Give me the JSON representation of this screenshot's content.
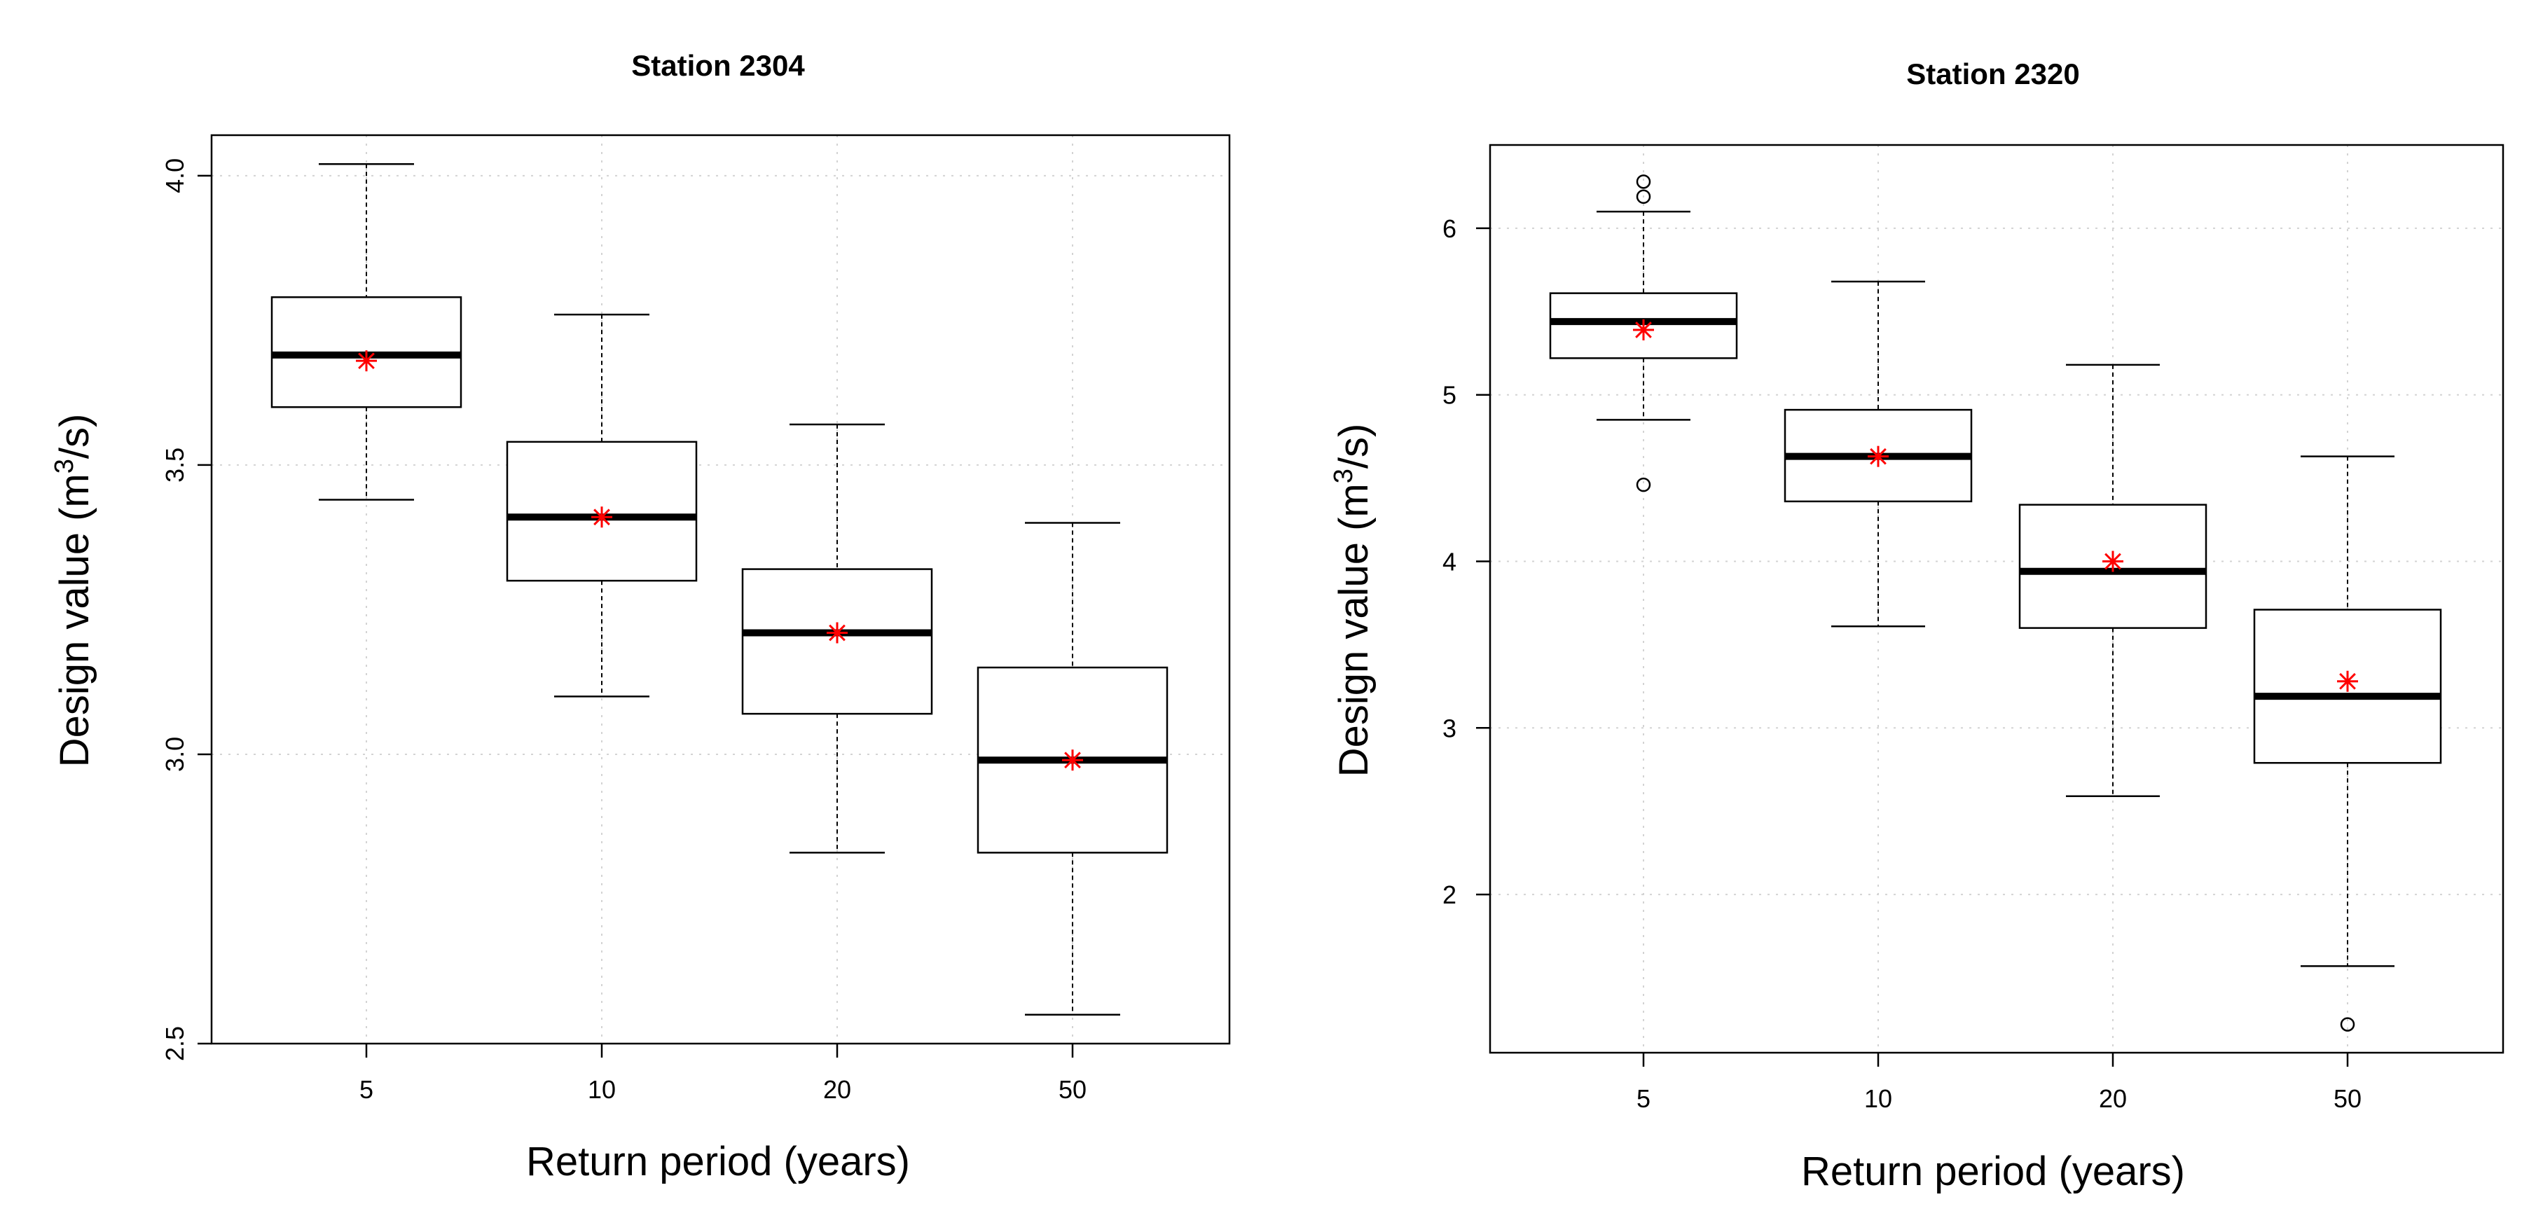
{
  "chart_data": [
    {
      "type": "box",
      "title": "Station 2304",
      "xlabel": "Return period (years)",
      "ylabel_main": "Design value (m",
      "ylabel_sup": "3",
      "ylabel_tail": "/s)",
      "categories": [
        "5",
        "10",
        "20",
        "50"
      ],
      "ylim": [
        2.5,
        4.07
      ],
      "yticks": [
        2.5,
        3.0,
        3.5,
        4.0
      ],
      "ytick_labels": [
        "2.5",
        "3.0",
        "3.5",
        "4.0"
      ],
      "boxes": [
        {
          "whisker_low": 3.44,
          "q1": 3.6,
          "median": 3.69,
          "q3": 3.79,
          "whisker_high": 4.02,
          "outliers": [],
          "point_estimate": 3.68
        },
        {
          "whisker_low": 3.1,
          "q1": 3.3,
          "median": 3.41,
          "q3": 3.54,
          "whisker_high": 3.76,
          "outliers": [],
          "point_estimate": 3.41
        },
        {
          "whisker_low": 2.83,
          "q1": 3.07,
          "median": 3.21,
          "q3": 3.32,
          "whisker_high": 3.57,
          "outliers": [],
          "point_estimate": 3.21
        },
        {
          "whisker_low": 2.55,
          "q1": 2.83,
          "median": 2.99,
          "q3": 3.15,
          "whisker_high": 3.4,
          "outliers": [],
          "point_estimate": 2.99
        }
      ],
      "point_estimate_color": "#ff0000",
      "grid": true
    },
    {
      "type": "box",
      "title": "Station 2320",
      "xlabel": "Return period (years)",
      "ylabel_main": "Design value (m",
      "ylabel_sup": "3",
      "ylabel_tail": "/s)",
      "categories": [
        "5",
        "10",
        "20",
        "50"
      ],
      "ylim": [
        1.05,
        6.5
      ],
      "yticks": [
        2,
        3,
        4,
        5,
        6
      ],
      "ytick_labels": [
        "2",
        "3",
        "4",
        "5",
        "6"
      ],
      "boxes": [
        {
          "whisker_low": 4.85,
          "q1": 5.22,
          "median": 5.44,
          "q3": 5.61,
          "whisker_high": 6.1,
          "outliers": [
            6.28,
            6.19,
            4.46
          ],
          "point_estimate": 5.39
        },
        {
          "whisker_low": 3.61,
          "q1": 4.36,
          "median": 4.63,
          "q3": 4.91,
          "whisker_high": 5.68,
          "outliers": [],
          "point_estimate": 4.63
        },
        {
          "whisker_low": 2.59,
          "q1": 3.6,
          "median": 3.94,
          "q3": 4.34,
          "whisker_high": 5.18,
          "outliers": [],
          "point_estimate": 4.0
        },
        {
          "whisker_low": 1.57,
          "q1": 2.79,
          "median": 3.19,
          "q3": 3.71,
          "whisker_high": 4.63,
          "outliers": [
            1.22
          ],
          "point_estimate": 3.28
        }
      ],
      "point_estimate_color": "#ff0000",
      "grid": true
    }
  ]
}
